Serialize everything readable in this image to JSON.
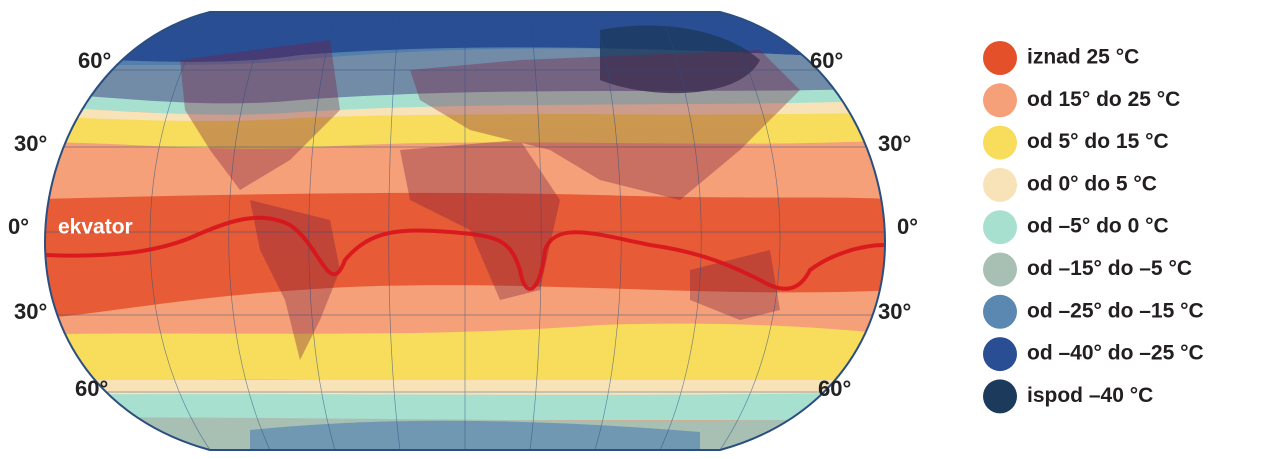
{
  "map": {
    "latitude_labels_left": [
      "60°",
      "30°",
      "0°",
      "30°",
      "60°"
    ],
    "latitude_labels_right": [
      "60°",
      "30°",
      "0°",
      "30°",
      "60°"
    ],
    "equator_label": "ekvator"
  },
  "legend": {
    "items": [
      {
        "label": "iznad 25 °C",
        "color": "#e4502a"
      },
      {
        "label": "od 15° do 25 °C",
        "color": "#f5a078"
      },
      {
        "label": "od 5° do 15 °C",
        "color": "#f8dc5c"
      },
      {
        "label": "od 0° do 5 °C",
        "color": "#f8e2b8"
      },
      {
        "label": "od –5° do 0 °C",
        "color": "#a8e0d0"
      },
      {
        "label": "od –15° do –5 °C",
        "color": "#a8c0b4"
      },
      {
        "label": "od –25° do –15 °C",
        "color": "#5a88b0"
      },
      {
        "label": "od –40° do –25 °C",
        "color": "#2a4e94"
      },
      {
        "label": "ispod –40 °C",
        "color": "#1c3a5c"
      }
    ]
  }
}
